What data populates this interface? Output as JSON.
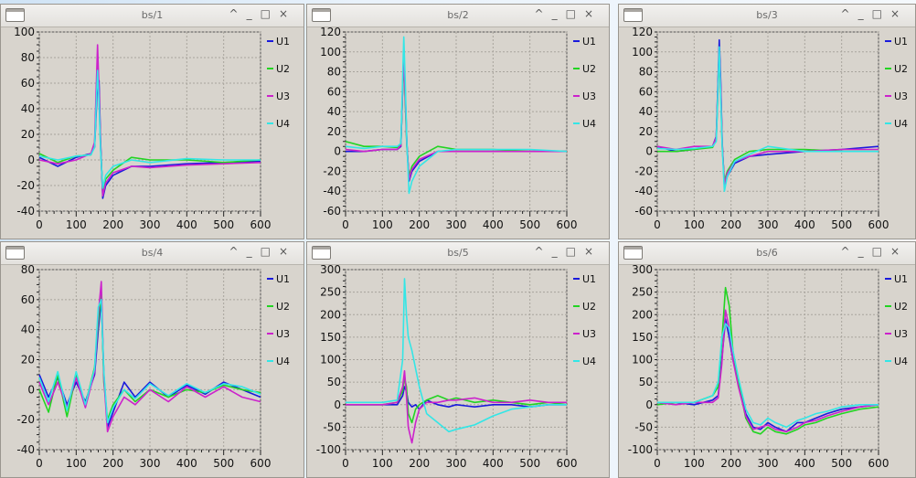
{
  "windows": [
    {
      "title": "bs/1"
    },
    {
      "title": "bs/2"
    },
    {
      "title": "bs/3"
    },
    {
      "title": "bs/4"
    },
    {
      "title": "bs/5"
    },
    {
      "title": "bs/6"
    }
  ],
  "controls": {
    "up": "^",
    "min": "_",
    "max": "□",
    "close": "×"
  },
  "legend_labels": [
    "U1",
    "U2",
    "U3",
    "U4"
  ],
  "colors": {
    "U1": "#1a1adc",
    "U2": "#22d422",
    "U3": "#cc22cc",
    "U4": "#33e6e6"
  },
  "chart_data": [
    {
      "type": "line",
      "title": "bs/1",
      "xlim": [
        0,
        600
      ],
      "ylim": [
        -40,
        100
      ],
      "xticks": [
        0,
        100,
        200,
        300,
        400,
        500,
        600
      ],
      "yticks": [
        -40,
        -20,
        0,
        20,
        40,
        60,
        80,
        100
      ],
      "x": [
        0,
        50,
        100,
        140,
        150,
        158,
        162,
        166,
        172,
        180,
        200,
        250,
        300,
        400,
        500,
        600
      ],
      "series": [
        {
          "name": "U1",
          "values": [
            2,
            -5,
            2,
            5,
            10,
            60,
            62,
            15,
            -30,
            -20,
            -12,
            -5,
            -5,
            -3,
            -2,
            -1
          ]
        },
        {
          "name": "U2",
          "values": [
            5,
            -2,
            3,
            4,
            12,
            80,
            50,
            10,
            -25,
            -15,
            -8,
            2,
            0,
            0,
            -2,
            0
          ]
        },
        {
          "name": "U3",
          "values": [
            0,
            -3,
            0,
            5,
            14,
            90,
            55,
            12,
            -28,
            -18,
            -10,
            -5,
            -6,
            -4,
            -3,
            -2
          ]
        },
        {
          "name": "U4",
          "values": [
            3,
            0,
            3,
            4,
            10,
            70,
            45,
            8,
            -22,
            -12,
            -5,
            0,
            -2,
            1,
            0,
            0
          ]
        }
      ]
    },
    {
      "type": "line",
      "title": "bs/2",
      "xlim": [
        0,
        600
      ],
      "ylim": [
        -60,
        120
      ],
      "xticks": [
        0,
        100,
        200,
        300,
        400,
        500,
        600
      ],
      "yticks": [
        -60,
        -40,
        -20,
        0,
        20,
        40,
        60,
        80,
        100,
        120
      ],
      "x": [
        0,
        50,
        100,
        140,
        150,
        158,
        162,
        166,
        172,
        180,
        200,
        250,
        300,
        400,
        500,
        600
      ],
      "series": [
        {
          "name": "U1",
          "values": [
            0,
            0,
            2,
            2,
            5,
            100,
            60,
            10,
            -30,
            -20,
            -10,
            0,
            0,
            0,
            0,
            0
          ]
        },
        {
          "name": "U2",
          "values": [
            10,
            5,
            5,
            4,
            6,
            95,
            50,
            5,
            -25,
            -15,
            -5,
            5,
            2,
            2,
            0,
            0
          ]
        },
        {
          "name": "U3",
          "values": [
            2,
            0,
            2,
            2,
            6,
            98,
            55,
            8,
            -28,
            -18,
            -8,
            0,
            0,
            0,
            0,
            0
          ]
        },
        {
          "name": "U4",
          "values": [
            5,
            3,
            5,
            5,
            8,
            115,
            70,
            10,
            -42,
            -30,
            -15,
            0,
            2,
            2,
            2,
            0
          ]
        }
      ]
    },
    {
      "type": "line",
      "title": "bs/3",
      "xlim": [
        0,
        600
      ],
      "ylim": [
        -60,
        120
      ],
      "xticks": [
        0,
        100,
        200,
        300,
        400,
        500,
        600
      ],
      "yticks": [
        -60,
        -40,
        -20,
        0,
        20,
        40,
        60,
        80,
        100,
        120
      ],
      "x": [
        0,
        50,
        100,
        150,
        160,
        168,
        172,
        176,
        182,
        190,
        210,
        250,
        300,
        400,
        500,
        600
      ],
      "series": [
        {
          "name": "U1",
          "values": [
            5,
            0,
            2,
            5,
            15,
            112,
            70,
            10,
            -35,
            -25,
            -12,
            -5,
            -3,
            0,
            2,
            5
          ]
        },
        {
          "name": "U2",
          "values": [
            0,
            0,
            2,
            4,
            12,
            95,
            60,
            5,
            -30,
            -20,
            -8,
            0,
            2,
            2,
            0,
            0
          ]
        },
        {
          "name": "U3",
          "values": [
            5,
            2,
            5,
            5,
            14,
            100,
            65,
            8,
            -33,
            -22,
            -10,
            -5,
            0,
            0,
            2,
            2
          ]
        },
        {
          "name": "U4",
          "values": [
            3,
            2,
            3,
            5,
            10,
            105,
            55,
            5,
            -40,
            -25,
            -10,
            -3,
            5,
            0,
            0,
            0
          ]
        }
      ]
    },
    {
      "type": "line",
      "title": "bs/4",
      "xlim": [
        0,
        600
      ],
      "ylim": [
        -40,
        80
      ],
      "xticks": [
        0,
        100,
        200,
        300,
        400,
        500,
        600
      ],
      "yticks": [
        -40,
        -20,
        0,
        20,
        40,
        60,
        80
      ],
      "x": [
        0,
        25,
        50,
        75,
        100,
        125,
        150,
        160,
        168,
        175,
        185,
        200,
        230,
        260,
        300,
        350,
        400,
        450,
        500,
        550,
        600
      ],
      "series": [
        {
          "name": "U1",
          "values": [
            10,
            -5,
            8,
            -10,
            5,
            -8,
            10,
            40,
            60,
            10,
            -25,
            -15,
            5,
            -5,
            5,
            -5,
            3,
            -3,
            5,
            0,
            -5
          ]
        },
        {
          "name": "U2",
          "values": [
            0,
            -15,
            10,
            -18,
            10,
            -10,
            15,
            45,
            65,
            5,
            -20,
            -10,
            0,
            -8,
            0,
            -5,
            0,
            -2,
            3,
            0,
            -2
          ]
        },
        {
          "name": "U3",
          "values": [
            5,
            -10,
            5,
            -12,
            8,
            -12,
            12,
            50,
            72,
            8,
            -28,
            -18,
            -5,
            -10,
            0,
            -8,
            2,
            -5,
            2,
            -5,
            -8
          ]
        },
        {
          "name": "U4",
          "values": [
            8,
            -8,
            12,
            -14,
            12,
            -10,
            14,
            55,
            60,
            12,
            -22,
            -12,
            0,
            -6,
            4,
            -4,
            4,
            -2,
            4,
            2,
            -3
          ]
        }
      ]
    },
    {
      "type": "line",
      "title": "bs/5",
      "xlim": [
        0,
        600
      ],
      "ylim": [
        -100,
        300
      ],
      "xticks": [
        0,
        100,
        200,
        300,
        400,
        500,
        600
      ],
      "yticks": [
        -100,
        -50,
        0,
        50,
        100,
        150,
        200,
        250,
        300
      ],
      "x": [
        0,
        100,
        140,
        155,
        160,
        165,
        170,
        180,
        190,
        200,
        220,
        250,
        280,
        300,
        350,
        400,
        450,
        500,
        550,
        600
      ],
      "series": [
        {
          "name": "U1",
          "values": [
            0,
            0,
            0,
            20,
            40,
            30,
            5,
            -5,
            0,
            -10,
            10,
            0,
            -5,
            0,
            -5,
            0,
            0,
            -5,
            0,
            0
          ]
        },
        {
          "name": "U2",
          "values": [
            0,
            0,
            5,
            30,
            60,
            40,
            -20,
            -40,
            -10,
            0,
            10,
            20,
            10,
            15,
            5,
            10,
            5,
            0,
            5,
            0
          ]
        },
        {
          "name": "U3",
          "values": [
            0,
            0,
            5,
            40,
            75,
            20,
            -50,
            -85,
            -40,
            -10,
            5,
            5,
            10,
            10,
            15,
            5,
            5,
            10,
            5,
            5
          ]
        },
        {
          "name": "U4",
          "values": [
            5,
            5,
            10,
            100,
            280,
            200,
            150,
            120,
            80,
            40,
            -20,
            -40,
            -60,
            -55,
            -45,
            -25,
            -10,
            -5,
            0,
            0
          ]
        }
      ]
    },
    {
      "type": "line",
      "title": "bs/6",
      "xlim": [
        0,
        600
      ],
      "ylim": [
        -100,
        300
      ],
      "xticks": [
        0,
        100,
        200,
        300,
        400,
        500,
        600
      ],
      "yticks": [
        -100,
        -50,
        0,
        50,
        100,
        150,
        200,
        250,
        300
      ],
      "x": [
        0,
        50,
        100,
        150,
        165,
        175,
        185,
        195,
        205,
        220,
        240,
        260,
        280,
        300,
        320,
        350,
        380,
        400,
        430,
        460,
        500,
        550,
        600
      ],
      "series": [
        {
          "name": "U1",
          "values": [
            5,
            5,
            0,
            10,
            20,
            100,
            190,
            150,
            100,
            50,
            -20,
            -50,
            -55,
            -40,
            -50,
            -60,
            -40,
            -40,
            -30,
            -20,
            -10,
            -5,
            0
          ]
        },
        {
          "name": "U2",
          "values": [
            0,
            5,
            5,
            20,
            40,
            140,
            260,
            220,
            120,
            50,
            -30,
            -60,
            -65,
            -50,
            -60,
            -65,
            -55,
            -45,
            -40,
            -30,
            -20,
            -10,
            -5
          ]
        },
        {
          "name": "U3",
          "values": [
            5,
            0,
            5,
            5,
            15,
            90,
            210,
            170,
            100,
            40,
            -25,
            -55,
            -50,
            -45,
            -55,
            -60,
            -50,
            -40,
            -35,
            -25,
            -15,
            -5,
            0
          ]
        },
        {
          "name": "U4",
          "values": [
            5,
            5,
            5,
            20,
            50,
            150,
            180,
            170,
            120,
            60,
            -10,
            -40,
            -45,
            -30,
            -40,
            -50,
            -35,
            -30,
            -20,
            -15,
            -5,
            0,
            0
          ]
        }
      ]
    }
  ]
}
